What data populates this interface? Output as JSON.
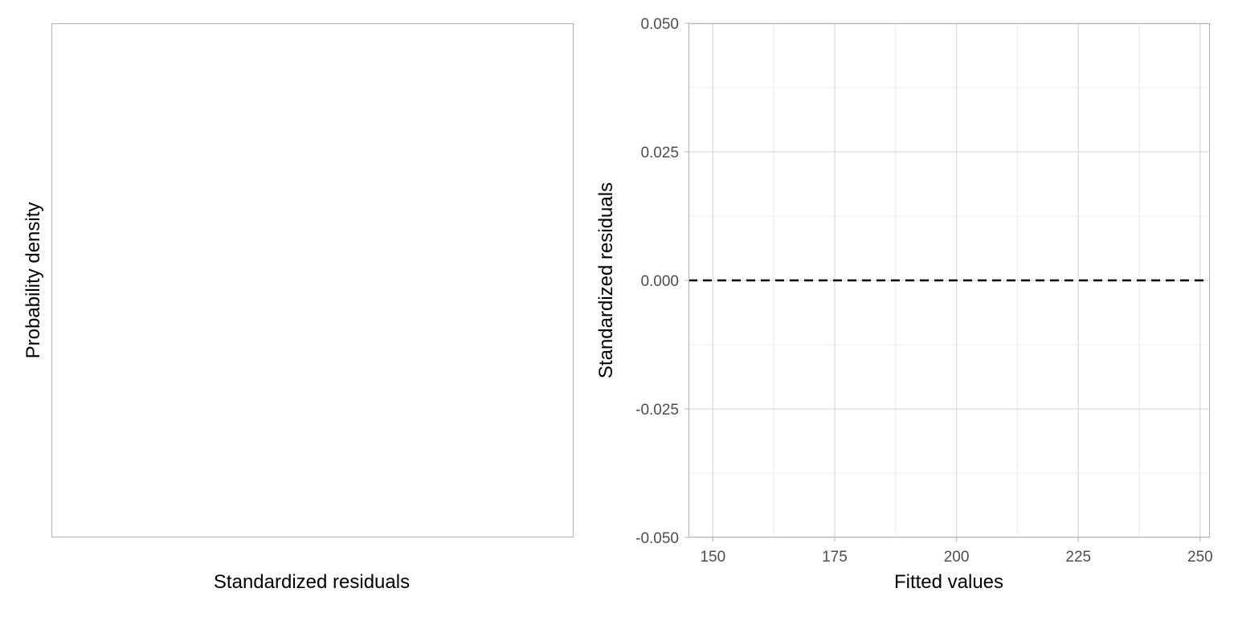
{
  "chart_data": [
    {
      "type": "area",
      "title": "",
      "xlabel": "Standardized residuals",
      "ylabel": "Probability density",
      "series": [],
      "grid": false,
      "x_ticks": [],
      "y_ticks": []
    },
    {
      "type": "scatter",
      "title": "",
      "xlabel": "Fitted values",
      "ylabel": "Standardized residuals",
      "xlim": [
        145,
        252
      ],
      "ylim": [
        -0.05,
        0.05
      ],
      "x_ticks": [
        "150",
        "175",
        "200",
        "225",
        "250"
      ],
      "x_tick_values": [
        150,
        175,
        200,
        225,
        250
      ],
      "y_ticks": [
        "0.050",
        "0.025",
        "0.000",
        "-0.025",
        "-0.050"
      ],
      "y_tick_values": [
        0.05,
        0.025,
        0,
        -0.025,
        -0.05
      ],
      "reference_line": {
        "y": 0,
        "style": "dashed",
        "color": "#000000"
      },
      "points": [],
      "grid": true
    }
  ],
  "colors": {
    "panel_border": "#b3b3b3",
    "grid_major": "#d9d9d9",
    "grid_minor": "#ececec",
    "tick_text": "#4d4d4d"
  }
}
